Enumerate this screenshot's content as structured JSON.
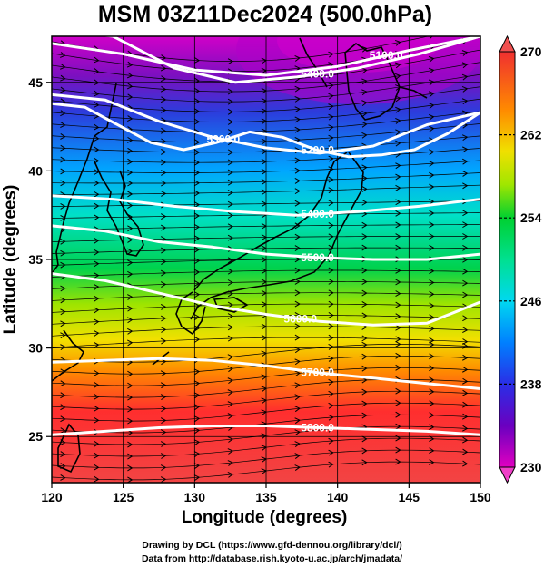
{
  "title": "MSM 03Z11Dec2024 (500.0hPa)",
  "xlabel": "Longitude (degrees)",
  "ylabel": "Latitude  (degrees)",
  "credits": {
    "line1": "Drawing by DCL (https://www.gfd-dennou.org/library/dcl/)",
    "line2": "Data from http://database.rish.kyoto-u.ac.jp/arch/jmadata/"
  },
  "chart_data": {
    "type": "heatmap",
    "title": "MSM 03Z11Dec2024 (500.0hPa)",
    "xlabel": "Longitude (degrees)",
    "ylabel": "Latitude  (degrees)",
    "xlim": [
      120,
      150
    ],
    "ylim": [
      22.4,
      47.6
    ],
    "xticks": [
      120,
      125,
      130,
      135,
      140,
      145,
      150
    ],
    "yticks": [
      25,
      30,
      35,
      40,
      45
    ],
    "grid": true,
    "colorbar": {
      "min": 230,
      "max": 270,
      "ticks": [
        230,
        238,
        246,
        254,
        262,
        270
      ],
      "colors": [
        "#e000c0",
        "#5b00b8",
        "#2a38e6",
        "#00b4ff",
        "#00e8c0",
        "#00d040",
        "#a0e600",
        "#f0e000",
        "#ff8a00",
        "#ff2a2a",
        "#f04040"
      ]
    },
    "temperature_field_K": {
      "latitudes": [
        47.6,
        46,
        44,
        42,
        40,
        38,
        36,
        34,
        32,
        30,
        28,
        26,
        24,
        22.4
      ],
      "values": [
        232,
        234,
        238,
        242,
        246,
        249,
        252,
        255,
        258,
        261,
        264,
        266,
        267,
        268
      ]
    },
    "height_contours_m": [
      {
        "value": 5400,
        "label": "5400.0",
        "lats": [
          48,
          47.6,
          45.8,
          45.0,
          45.3,
          45.8,
          46.6,
          47.6
        ]
      },
      {
        "value": 5300,
        "label": "5300.0",
        "lats": [
          44.3,
          44.0,
          42.8,
          41.9,
          41.3,
          41.0,
          41.4,
          42.6,
          43.3
        ]
      },
      {
        "value": 5200,
        "label": "5200.0",
        "lats": [
          43.8,
          43.6,
          42.6,
          41.6,
          41.2,
          41.6,
          42.2,
          41.9,
          41.2,
          40.8,
          40.9,
          41.2,
          42.1,
          43.3
        ]
      },
      {
        "value": 5100,
        "label": "5100.0",
        "lats": [
          47.2,
          46.6,
          45.7,
          45.4,
          45.9,
          46.8,
          47.6
        ]
      },
      {
        "value": 5400,
        "label": "5400.0",
        "lats": [
          38.6,
          38.4,
          38.0,
          37.7,
          37.5,
          37.7,
          38.0,
          38.4
        ]
      },
      {
        "value": 5500,
        "label": "5500.0",
        "lats": [
          36.9,
          36.6,
          36.0,
          35.7,
          35.3,
          35.1,
          35.0,
          35.0,
          35.3
        ]
      },
      {
        "value": 5600,
        "label": "5600.0",
        "lats": [
          34.2,
          33.8,
          33.1,
          32.4,
          31.9,
          31.5,
          31.3,
          31.4,
          32.6
        ]
      },
      {
        "value": 5700,
        "label": "5700.0",
        "lats": [
          29.2,
          29.3,
          29.4,
          29.3,
          29.0,
          28.6,
          28.3,
          28.0,
          27.7
        ]
      },
      {
        "value": 5800,
        "label": "5800.0",
        "lats": [
          25.1,
          25.3,
          25.5,
          25.6,
          25.6,
          25.5,
          25.4,
          25.3,
          25.1
        ]
      }
    ],
    "streamlines": "westerly flow, slightly converging toward the northeast in the north and flowing east-northeast across the south"
  }
}
